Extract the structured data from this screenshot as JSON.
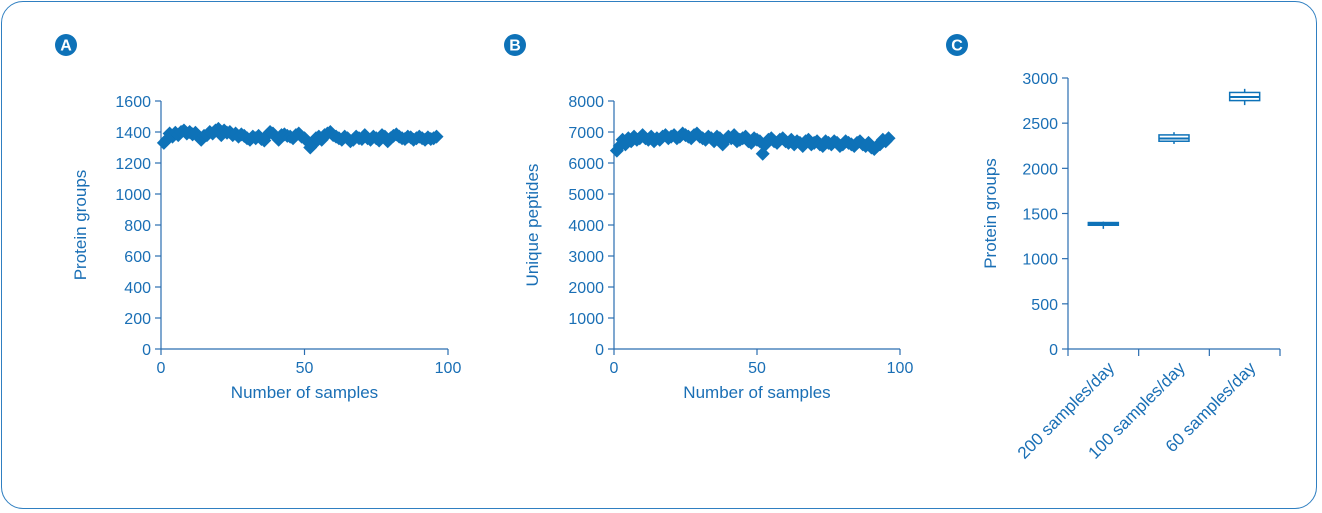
{
  "colors": {
    "accent": "#0e72b8",
    "text": "#1a6fb5",
    "frame": "#2f7fc1"
  },
  "panels": [
    {
      "letter": "A"
    },
    {
      "letter": "B"
    },
    {
      "letter": "C"
    }
  ],
  "chart_data": [
    {
      "type": "scatter",
      "panel": "A",
      "xlabel": "Number of samples",
      "ylabel": "Protein groups",
      "xlim": [
        0,
        100
      ],
      "ylim": [
        0,
        1600
      ],
      "xticks": [
        0,
        50,
        100
      ],
      "yticks": [
        0,
        200,
        400,
        600,
        800,
        1000,
        1200,
        1400,
        1600
      ],
      "marker": "diamond",
      "x": [
        1,
        2,
        3,
        4,
        5,
        6,
        7,
        8,
        9,
        10,
        11,
        12,
        13,
        14,
        15,
        16,
        17,
        18,
        19,
        20,
        21,
        22,
        23,
        24,
        25,
        26,
        27,
        28,
        29,
        30,
        31,
        32,
        33,
        34,
        35,
        36,
        37,
        38,
        39,
        40,
        41,
        42,
        43,
        44,
        45,
        46,
        47,
        48,
        49,
        50,
        51,
        52,
        53,
        54,
        55,
        56,
        57,
        58,
        59,
        60,
        61,
        62,
        63,
        64,
        65,
        66,
        67,
        68,
        69,
        70,
        71,
        72,
        73,
        74,
        75,
        76,
        77,
        78,
        79,
        80,
        81,
        82,
        83,
        84,
        85,
        86,
        87,
        88,
        89,
        90,
        91,
        92,
        93,
        94,
        95,
        96
      ],
      "y": [
        1330,
        1350,
        1390,
        1370,
        1395,
        1380,
        1400,
        1410,
        1390,
        1400,
        1385,
        1395,
        1370,
        1350,
        1375,
        1380,
        1400,
        1390,
        1410,
        1420,
        1380,
        1410,
        1395,
        1400,
        1380,
        1390,
        1370,
        1385,
        1375,
        1360,
        1350,
        1370,
        1360,
        1375,
        1355,
        1345,
        1380,
        1400,
        1390,
        1370,
        1350,
        1380,
        1385,
        1375,
        1370,
        1360,
        1380,
        1390,
        1370,
        1360,
        1340,
        1300,
        1320,
        1360,
        1370,
        1350,
        1380,
        1390,
        1400,
        1380,
        1370,
        1360,
        1350,
        1370,
        1360,
        1340,
        1350,
        1370,
        1360,
        1355,
        1380,
        1360,
        1350,
        1370,
        1360,
        1345,
        1380,
        1370,
        1340,
        1360,
        1375,
        1385,
        1370,
        1360,
        1355,
        1370,
        1365,
        1350,
        1360,
        1370,
        1360,
        1350,
        1365,
        1355,
        1360,
        1370
      ]
    },
    {
      "type": "scatter",
      "panel": "B",
      "xlabel": "Number of samples",
      "ylabel": "Unique peptides",
      "xlim": [
        0,
        100
      ],
      "ylim": [
        0,
        8000
      ],
      "xticks": [
        0,
        50,
        100
      ],
      "yticks": [
        0,
        1000,
        2000,
        3000,
        4000,
        5000,
        6000,
        7000,
        8000
      ],
      "marker": "diamond",
      "x": [
        1,
        2,
        3,
        4,
        5,
        6,
        7,
        8,
        9,
        10,
        11,
        12,
        13,
        14,
        15,
        16,
        17,
        18,
        19,
        20,
        21,
        22,
        23,
        24,
        25,
        26,
        27,
        28,
        29,
        30,
        31,
        32,
        33,
        34,
        35,
        36,
        37,
        38,
        39,
        40,
        41,
        42,
        43,
        44,
        45,
        46,
        47,
        48,
        49,
        50,
        51,
        52,
        53,
        54,
        55,
        56,
        57,
        58,
        59,
        60,
        61,
        62,
        63,
        64,
        65,
        66,
        67,
        68,
        69,
        70,
        71,
        72,
        73,
        74,
        75,
        76,
        77,
        78,
        79,
        80,
        81,
        82,
        83,
        84,
        85,
        86,
        87,
        88,
        89,
        90,
        91,
        92,
        93,
        94,
        95,
        96
      ],
      "y": [
        6400,
        6550,
        6750,
        6600,
        6800,
        6700,
        6850,
        6750,
        6800,
        6900,
        6800,
        6750,
        6850,
        6700,
        6800,
        6750,
        6850,
        6900,
        6800,
        6850,
        6900,
        6800,
        6850,
        6950,
        6900,
        6850,
        6800,
        6900,
        6950,
        6850,
        6800,
        6750,
        6850,
        6800,
        6700,
        6850,
        6800,
        6600,
        6750,
        6850,
        6800,
        6900,
        6700,
        6750,
        6800,
        6850,
        6700,
        6650,
        6800,
        6750,
        6700,
        6300,
        6600,
        6750,
        6800,
        6700,
        6650,
        6750,
        6800,
        6700,
        6650,
        6750,
        6600,
        6700,
        6650,
        6550,
        6700,
        6750,
        6600,
        6650,
        6700,
        6600,
        6550,
        6700,
        6650,
        6600,
        6700,
        6650,
        6550,
        6600,
        6700,
        6650,
        6600,
        6550,
        6650,
        6700,
        6600,
        6550,
        6650,
        6500,
        6450,
        6550,
        6600,
        6750,
        6700,
        6800
      ]
    },
    {
      "type": "box",
      "panel": "C",
      "ylabel": "Protein groups",
      "ylim": [
        0,
        3000
      ],
      "yticks": [
        0,
        500,
        1000,
        1500,
        2000,
        2500,
        3000
      ],
      "categories": [
        "200 samples/day",
        "100 samples/day",
        "60 samples/day"
      ],
      "boxes": [
        {
          "min": 1330,
          "q1": 1370,
          "median": 1385,
          "q3": 1400,
          "max": 1410
        },
        {
          "min": 2270,
          "q1": 2300,
          "median": 2330,
          "q3": 2370,
          "max": 2400
        },
        {
          "min": 2700,
          "q1": 2750,
          "median": 2790,
          "q3": 2840,
          "max": 2880
        }
      ]
    }
  ]
}
